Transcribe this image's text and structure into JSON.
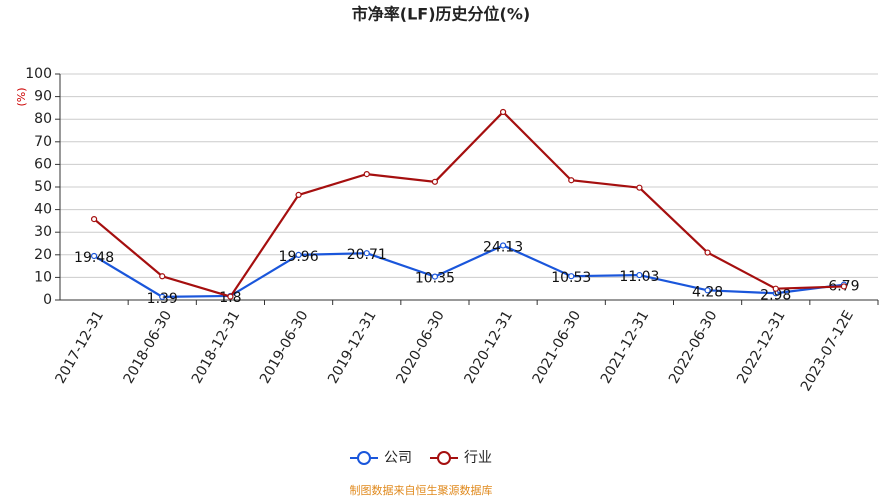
{
  "chart_data": {
    "type": "line",
    "title": "市净率(LF)历史分位(%)",
    "y_label": "(%)",
    "source": "制图数据来自恒生聚源数据库",
    "categories": [
      "2017-12-31",
      "2018-06-30",
      "2018-12-31",
      "2019-06-30",
      "2019-12-31",
      "2020-06-30",
      "2020-12-31",
      "2021-06-30",
      "2021-12-31",
      "2022-06-30",
      "2022-12-31",
      "2023-07-12E"
    ],
    "series": [
      {
        "name": "公司",
        "color": "#1a56db",
        "values": [
          19.48,
          1.39,
          1.8,
          19.96,
          20.71,
          10.35,
          24.13,
          10.53,
          11.03,
          4.28,
          2.98,
          6.79
        ]
      },
      {
        "name": "行业",
        "color": "#a50f0f",
        "values": [
          35.8,
          10.5,
          1.5,
          46.5,
          55.7,
          52.3,
          83.2,
          53,
          49.7,
          21,
          5,
          6
        ]
      }
    ],
    "ylim": [
      0,
      100
    ],
    "yticks": [
      0,
      10,
      20,
      30,
      40,
      50,
      60,
      70,
      80,
      90,
      100
    ],
    "grid": true
  }
}
